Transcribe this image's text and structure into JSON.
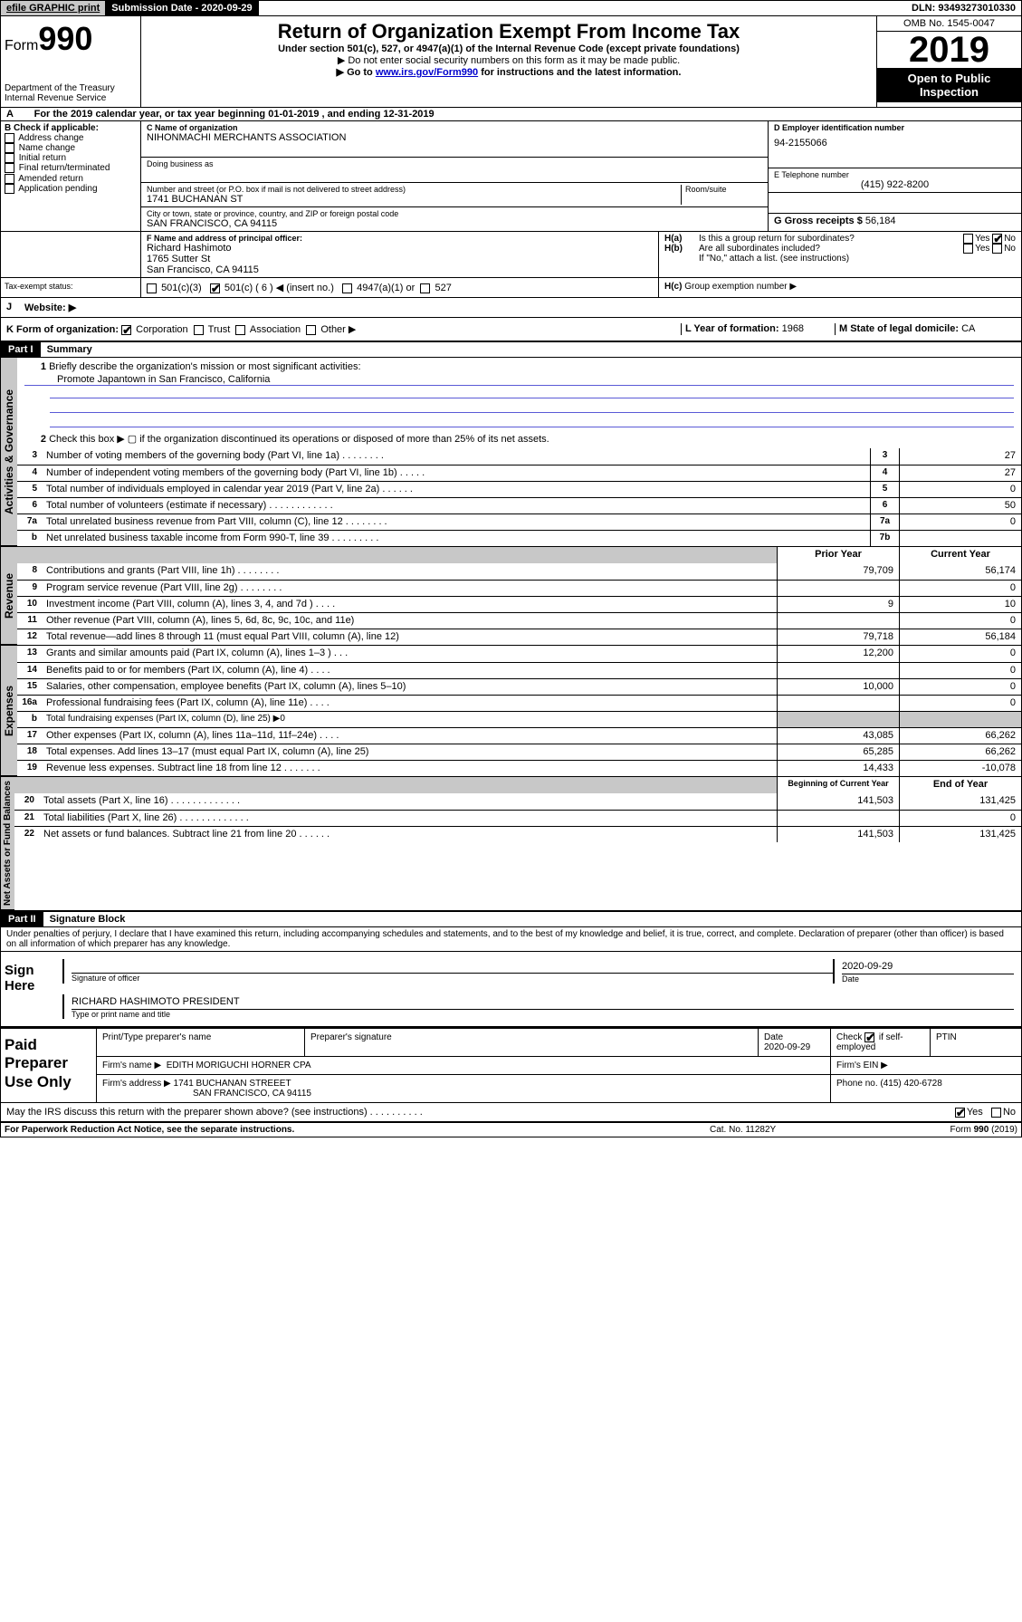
{
  "topbar": {
    "efile": "efile GRAPHIC print",
    "subdate_lbl": "Submission Date - ",
    "subdate": "2020-09-29",
    "dln": "DLN: 93493273010330"
  },
  "header": {
    "form_prefix": "Form",
    "form_num": "990",
    "dept": "Department of the Treasury",
    "irs": "Internal Revenue Service",
    "title": "Return of Organization Exempt From Income Tax",
    "sub1": "Under section 501(c), 527, or 4947(a)(1) of the Internal Revenue Code (except private foundations)",
    "sub2": "▶ Do not enter social security numbers on this form as it may be made public.",
    "sub3_pre": "▶ Go to ",
    "sub3_link": "www.irs.gov/Form990",
    "sub3_post": " for instructions and the latest information.",
    "omb": "OMB No. 1545-0047",
    "year": "2019",
    "otp1": "Open to Public",
    "otp2": "Inspection"
  },
  "period": {
    "a": "A",
    "txt_pre": "For the 2019 calendar year, or tax year beginning ",
    "begin": "01-01-2019",
    "txt_mid": " , and ending ",
    "end": "12-31-2019"
  },
  "boxB": {
    "hdr": "B Check if applicable:",
    "opts": [
      "Address change",
      "Name change",
      "Initial return",
      "Final return/terminated",
      "Amended return",
      "Application pending"
    ]
  },
  "boxC": {
    "lbl": "C Name of organization",
    "name": "NIHONMACHI MERCHANTS ASSOCIATION",
    "dba_lbl": "Doing business as",
    "addr_lbl": "Number and street (or P.O. box if mail is not delivered to street address)",
    "rm_lbl": "Room/suite",
    "addr": "1741 BUCHANAN ST",
    "city_lbl": "City or town, state or province, country, and ZIP or foreign postal code",
    "city": "SAN FRANCISCO, CA  94115"
  },
  "boxD": {
    "lbl": "D Employer identification number",
    "val": "94-2155066"
  },
  "boxE": {
    "lbl": "E Telephone number",
    "val": "(415) 922-8200"
  },
  "boxG": {
    "lbl": "G Gross receipts $",
    "val": "56,184"
  },
  "boxF": {
    "lbl": "F Name and address of principal officer:",
    "name": "Richard Hashimoto",
    "addr1": "1765 Sutter St",
    "addr2": "San Francisco, CA  94115"
  },
  "boxH": {
    "a_lbl": "H(a)",
    "a_txt": "Is this a group return for subordinates?",
    "b_lbl": "H(b)",
    "b_txt": "Are all subordinates included?",
    "b_note": "If \"No,\" attach a list. (see instructions)",
    "c_lbl": "H(c)",
    "c_txt": "Group exemption number ▶",
    "yes": "Yes",
    "no": "No"
  },
  "taxstatus": {
    "lbl": "Tax-exempt status:",
    "o1": "501(c)(3)",
    "o2": "501(c) ( 6 ) ◀ (insert no.)",
    "o3": "4947(a)(1) or",
    "o4": "527"
  },
  "website": {
    "lbl": "J",
    "txt": "Website: ▶"
  },
  "boxK": {
    "lbl": "K Form of organization:",
    "opts": [
      "Corporation",
      "Trust",
      "Association",
      "Other ▶"
    ]
  },
  "boxL": {
    "lbl": "L Year of formation:",
    "val": "1968"
  },
  "boxM": {
    "lbl": "M State of legal domicile:",
    "val": "CA"
  },
  "part1": {
    "hdr": "Part I",
    "title": "Summary"
  },
  "summary": {
    "l1_lbl": "1",
    "l1_txt": "Briefly describe the organization's mission or most significant activities:",
    "l1_val": "Promote Japantown in San Francisco, California",
    "l2_lbl": "2",
    "l2_txt": "Check this box ▶ ▢ if the organization discontinued its operations or disposed of more than 25% of its net assets.",
    "tab_gov": "Activities & Governance",
    "tab_rev": "Revenue",
    "tab_exp": "Expenses",
    "tab_net": "Net Assets or Fund Balances",
    "rows_g": [
      {
        "n": "3",
        "t": "Number of voting members of the governing body (Part VI, line 1a)   .    .    .    .    .    .    .    .",
        "b": "3",
        "v": "27"
      },
      {
        "n": "4",
        "t": "Number of independent voting members of the governing body (Part VI, line 1b)   .    .    .    .    .",
        "b": "4",
        "v": "27"
      },
      {
        "n": "5",
        "t": "Total number of individuals employed in calendar year 2019 (Part V, line 2a)   .    .    .    .    .    .",
        "b": "5",
        "v": "0"
      },
      {
        "n": "6",
        "t": "Total number of volunteers (estimate if necessary)   .    .    .    .    .    .    .    .    .    .    .    .",
        "b": "6",
        "v": "50"
      },
      {
        "n": "7a",
        "t": "Total unrelated business revenue from Part VIII, column (C), line 12   .    .    .    .    .    .    .    .",
        "b": "7a",
        "v": "0"
      },
      {
        "n": "b",
        "t": "Net unrelated business taxable income from Form 990-T, line 39   .    .    .    .    .    .    .    .    .",
        "b": "7b",
        "v": ""
      }
    ],
    "col_prior": "Prior Year",
    "col_curr": "Current Year",
    "col_beg": "Beginning of Current Year",
    "col_end": "End of Year",
    "rows_r": [
      {
        "n": "8",
        "t": "Contributions and grants (Part VIII, line 1h)   .    .    .    .    .    .    .    .",
        "p": "79,709",
        "c": "56,174"
      },
      {
        "n": "9",
        "t": "Program service revenue (Part VIII, line 2g)   .    .    .    .    .    .    .    .",
        "p": "",
        "c": "0"
      },
      {
        "n": "10",
        "t": "Investment income (Part VIII, column (A), lines 3, 4, and 7d )   .    .    .    .",
        "p": "9",
        "c": "10"
      },
      {
        "n": "11",
        "t": "Other revenue (Part VIII, column (A), lines 5, 6d, 8c, 9c, 10c, and 11e)",
        "p": "",
        "c": "0"
      },
      {
        "n": "12",
        "t": "Total revenue—add lines 8 through 11 (must equal Part VIII, column (A), line 12)",
        "p": "79,718",
        "c": "56,184"
      }
    ],
    "rows_e": [
      {
        "n": "13",
        "t": "Grants and similar amounts paid (Part IX, column (A), lines 1–3 )   .    .    .",
        "p": "12,200",
        "c": "0"
      },
      {
        "n": "14",
        "t": "Benefits paid to or for members (Part IX, column (A), line 4)   .    .    .    .",
        "p": "",
        "c": "0"
      },
      {
        "n": "15",
        "t": "Salaries, other compensation, employee benefits (Part IX, column (A), lines 5–10)",
        "p": "10,000",
        "c": "0"
      },
      {
        "n": "16a",
        "t": "Professional fundraising fees (Part IX, column (A), line 11e)   .    .    .    .",
        "p": "",
        "c": "0"
      },
      {
        "n": "b",
        "t": "Total fundraising expenses (Part IX, column (D), line 25) ▶0",
        "p": null,
        "c": null
      },
      {
        "n": "17",
        "t": "Other expenses (Part IX, column (A), lines 11a–11d, 11f–24e)   .    .    .    .",
        "p": "43,085",
        "c": "66,262"
      },
      {
        "n": "18",
        "t": "Total expenses. Add lines 13–17 (must equal Part IX, column (A), line 25)",
        "p": "65,285",
        "c": "66,262"
      },
      {
        "n": "19",
        "t": "Revenue less expenses. Subtract line 18 from line 12   .    .    .    .    .    .    .",
        "p": "14,433",
        "c": "-10,078"
      }
    ],
    "rows_n": [
      {
        "n": "20",
        "t": "Total assets (Part X, line 16)   .    .    .    .    .    .    .    .    .    .    .    .    .",
        "p": "141,503",
        "c": "131,425"
      },
      {
        "n": "21",
        "t": "Total liabilities (Part X, line 26)   .    .    .    .    .    .    .    .    .    .    .    .    .",
        "p": "",
        "c": "0"
      },
      {
        "n": "22",
        "t": "Net assets or fund balances. Subtract line 21 from line 20   .    .    .    .    .    .",
        "p": "141,503",
        "c": "131,425"
      }
    ]
  },
  "part2": {
    "hdr": "Part II",
    "title": "Signature Block"
  },
  "perjury": "Under penalties of perjury, I declare that I have examined this return, including accompanying schedules and statements, and to the best of my knowledge and belief, it is true, correct, and complete. Declaration of preparer (other than officer) is based on all information of which preparer has any knowledge.",
  "sign": {
    "here": "Sign Here",
    "sig_of": "Signature of officer",
    "date": "2020-09-29",
    "date_lbl": "Date",
    "name": "RICHARD HASHIMOTO  PRESIDENT",
    "name_lbl": "Type or print name and title"
  },
  "paid": {
    "hdr": "Paid Preparer Use Only",
    "p_name_lbl": "Print/Type preparer's name",
    "p_sig_lbl": "Preparer's signature",
    "p_date_lbl": "Date",
    "p_date": "2020-09-29",
    "ck_lbl": "Check ▢ if self-employed",
    "ptin_lbl": "PTIN",
    "firm_name_lbl": "Firm's name   ▶",
    "firm_name": "EDITH MORIGUCHI HORNER CPA",
    "firm_ein_lbl": "Firm's EIN ▶",
    "firm_addr_lbl": "Firm's address ▶",
    "firm_addr1": "1741 BUCHANAN STREEET",
    "firm_addr2": "SAN FRANCISCO, CA  94115",
    "phone_lbl": "Phone no.",
    "phone": "(415) 420-6728"
  },
  "discuss": {
    "txt": "May the IRS discuss this return with the preparer shown above? (see instructions)   .    .    .    .    .    .    .    .    .    .",
    "yes": "Yes",
    "no": "No"
  },
  "footer": {
    "l": "For Paperwork Reduction Act Notice, see the separate instructions.",
    "m": "Cat. No. 11282Y",
    "r": "Form 990 (2019)"
  }
}
